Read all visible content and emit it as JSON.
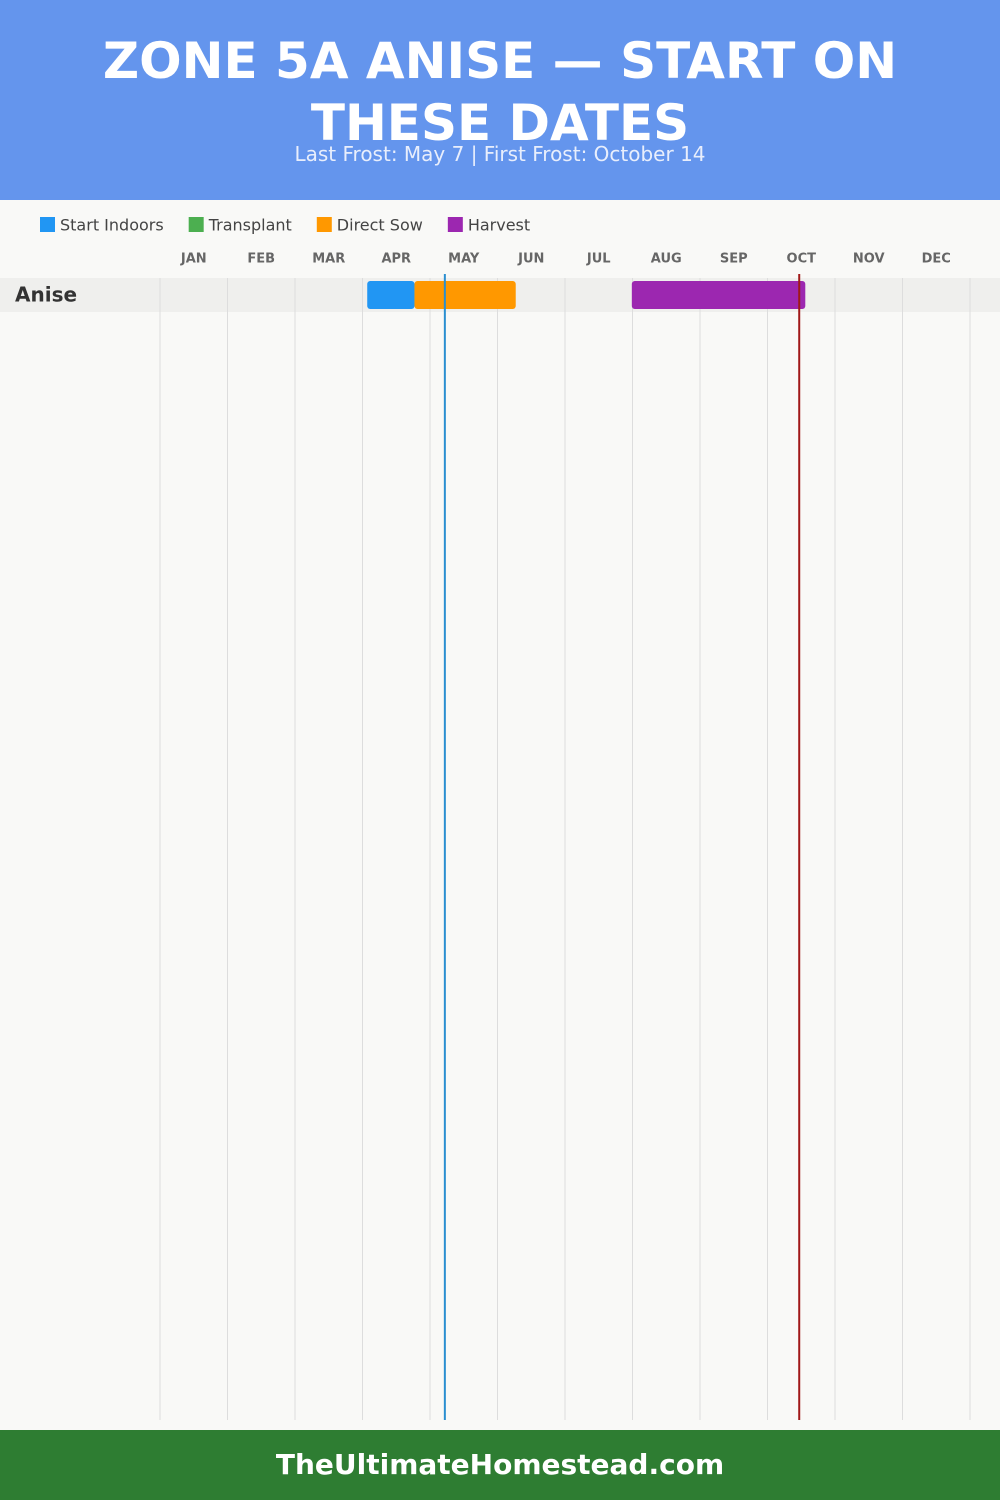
{
  "chart_data": {
    "type": "gantt",
    "title": "ZONE 5A ANISE — START ON THESE DATES",
    "subtitle": "Last Frost: May 7 | First Frost: October 14",
    "categories": [
      "JAN",
      "FEB",
      "MAR",
      "APR",
      "MAY",
      "JUN",
      "JUL",
      "AUG",
      "SEP",
      "OCT",
      "NOV",
      "DEC"
    ],
    "xlim": [
      0,
      12
    ],
    "series": [
      {
        "name": "Start Indoors",
        "color": "#2196f3"
      },
      {
        "name": "Transplant",
        "color": "#4caf50"
      },
      {
        "name": "Direct Sow",
        "color": "#ff9800"
      },
      {
        "name": "Harvest",
        "color": "#9c27b0"
      }
    ],
    "rows": [
      {
        "name": "Anise",
        "segments": [
          {
            "series": 0,
            "start": 3.07,
            "end": 3.77
          },
          {
            "series": 2,
            "start": 3.77,
            "end": 5.27
          },
          {
            "series": 3,
            "start": 6.99,
            "end": 9.56
          }
        ]
      }
    ],
    "markers": [
      {
        "value": 4.22,
        "color": "#2a8fd0"
      },
      {
        "value": 9.47,
        "color": "#a01818"
      }
    ]
  },
  "footer": "TheUltimateHomestead.com"
}
